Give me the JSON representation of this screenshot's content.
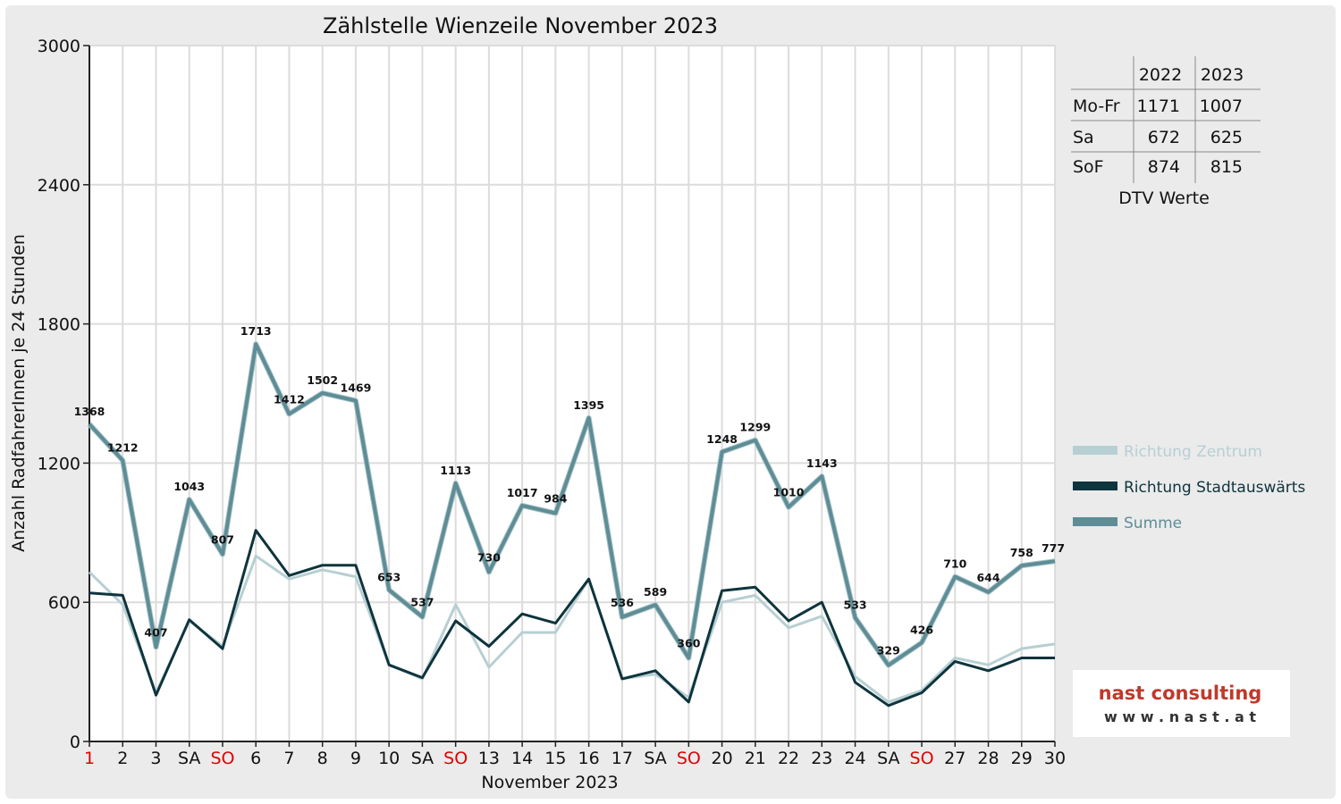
{
  "chart_data": {
    "type": "line",
    "title": "Zählstelle Wienzeile November 2023",
    "xlabel": "November 2023",
    "ylabel": "Anzahl RadfahrerInnen je 24 Stunden",
    "ylim": [
      0,
      3000
    ],
    "yticks": [
      "0",
      "600",
      "1200",
      "1800",
      "2400",
      "3000"
    ],
    "categories": [
      "1",
      "2",
      "3",
      "SA",
      "SO",
      "6",
      "7",
      "8",
      "9",
      "10",
      "SA",
      "SO",
      "13",
      "14",
      "15",
      "16",
      "17",
      "SA",
      "SO",
      "20",
      "21",
      "22",
      "23",
      "24",
      "SA",
      "SO",
      "27",
      "28",
      "29",
      "30"
    ],
    "category_colors": [
      "#e00000",
      "#111111",
      "#111111",
      "#111111",
      "#e00000",
      "#111111",
      "#111111",
      "#111111",
      "#111111",
      "#111111",
      "#111111",
      "#e00000",
      "#111111",
      "#111111",
      "#111111",
      "#111111",
      "#111111",
      "#111111",
      "#e00000",
      "#111111",
      "#111111",
      "#111111",
      "#111111",
      "#111111",
      "#111111",
      "#e00000",
      "#111111",
      "#111111",
      "#111111",
      "#111111"
    ],
    "grid": true,
    "legend_position": "right",
    "series": [
      {
        "name": "Richtung Zentrum",
        "color": "#b7cfd3",
        "values": [
          730,
          590,
          210,
          520,
          410,
          800,
          700,
          740,
          710,
          330,
          270,
          590,
          320,
          470,
          470,
          700,
          270,
          290,
          190,
          600,
          630,
          490,
          540,
          280,
          170,
          220,
          360,
          330,
          400,
          420
        ]
      },
      {
        "name": "Richtung Stadtauswärts",
        "color": "#0e343d",
        "values": [
          640,
          630,
          200,
          525,
          400,
          910,
          715,
          760,
          760,
          330,
          275,
          520,
          410,
          550,
          510,
          700,
          270,
          305,
          170,
          650,
          665,
          520,
          600,
          255,
          155,
          210,
          345,
          305,
          360,
          360
        ]
      },
      {
        "name": "Summe",
        "color": "#5e8d96",
        "values": [
          1368,
          1212,
          407,
          1043,
          807,
          1713,
          1412,
          1502,
          1469,
          653,
          537,
          1113,
          730,
          1017,
          984,
          1395,
          536,
          589,
          360,
          1248,
          1299,
          1010,
          1143,
          533,
          329,
          426,
          710,
          644,
          758,
          777
        ]
      }
    ],
    "data_labels": [
      "1368",
      "1212",
      "407",
      "1043",
      "807",
      "1713",
      "1412",
      "1502",
      "1469",
      "653",
      "537",
      "1113",
      "730",
      "1017",
      "984",
      "1395",
      "536",
      "589",
      "360",
      "1248",
      "1299",
      "1010",
      "1143",
      "533",
      "329",
      "426",
      "710",
      "644",
      "758",
      "777"
    ]
  },
  "dtv_table": {
    "headers": [
      "",
      "2022",
      "2023"
    ],
    "rows": [
      {
        "label": "Mo-Fr",
        "v2022": "1171",
        "v2023": "1007"
      },
      {
        "label": "Sa",
        "v2022": "672",
        "v2023": "625"
      },
      {
        "label": "SoF",
        "v2022": "874",
        "v2023": "815"
      }
    ],
    "caption": "DTV Werte"
  },
  "logo": {
    "line1": "nast consulting",
    "line2": "w w w . n a s t . a t"
  },
  "colors": {
    "background": "#ebebeb",
    "plot": "#ffffff",
    "grid": "#dcdcdc",
    "red": "#e00000"
  }
}
